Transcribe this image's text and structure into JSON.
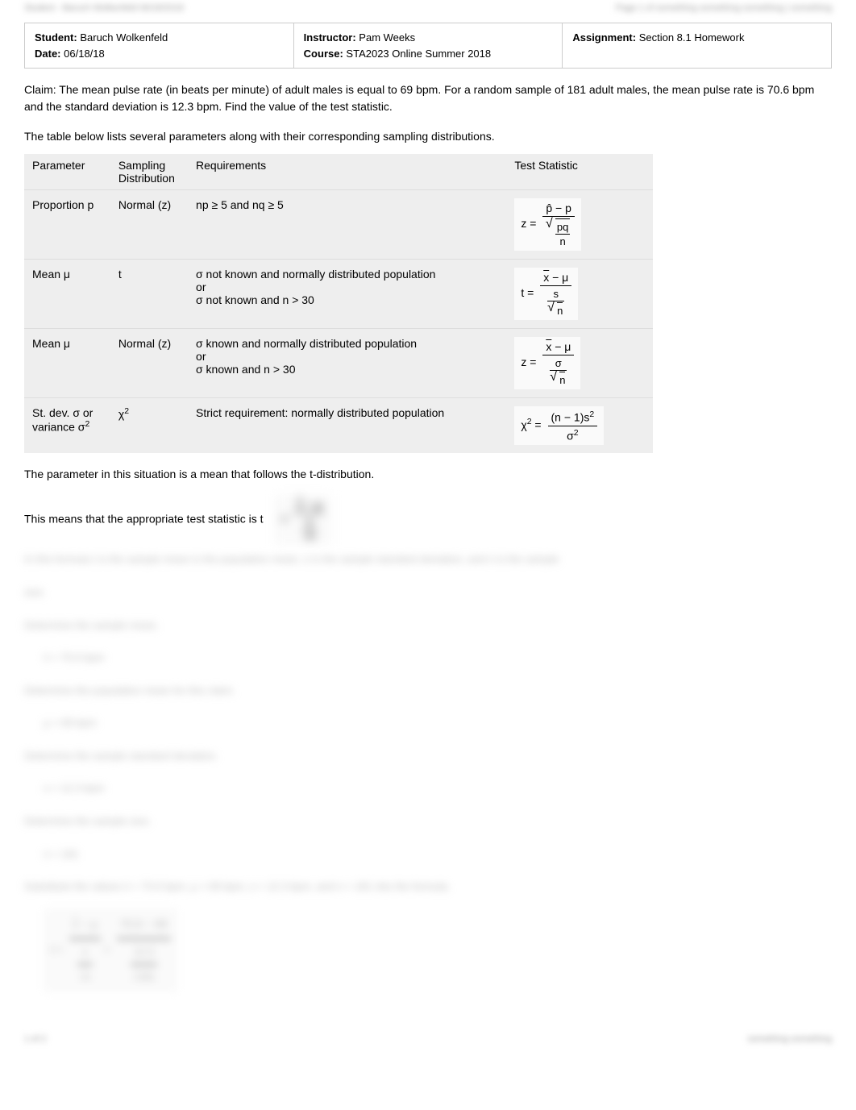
{
  "header_blur_left": "Student - Baruch Wolkenfeld 06/18/2018",
  "header_blur_right": "Page 1 of something something something | something",
  "info": {
    "student_label": "Student:",
    "student_value": "Baruch Wolkenfeld",
    "date_label": "Date:",
    "date_value": "06/18/18",
    "instructor_label": "Instructor:",
    "instructor_value": "Pam Weeks",
    "course_label": "Course:",
    "course_value": "STA2023 Online Summer 2018",
    "assignment_label": "Assignment:",
    "assignment_value": "Section 8.1 Homework"
  },
  "claim": "Claim: The mean pulse rate (in beats per minute) of adult males is equal to 69 bpm. For a random sample of 181 adult males, the mean pulse rate is 70.6 bpm and the standard deviation is 12.3 bpm. Find the value of the test statistic.",
  "table_intro": "The table below lists several parameters along with their corresponding sampling distributions.",
  "table": {
    "headers": {
      "parameter": "Parameter",
      "distribution": "Sampling Distribution",
      "requirements": "Requirements",
      "statistic": "Test Statistic"
    },
    "rows": [
      {
        "parameter": "Proportion p",
        "distribution": "Normal (z)",
        "requirements": "np ≥ 5 and nq ≥ 5",
        "stat_lhs": "z =",
        "stat_num": "p̂ − p",
        "stat_den_num": "pq",
        "stat_den_den": "n",
        "formula_type": "z_prop"
      },
      {
        "parameter": "Mean μ",
        "distribution": "t",
        "requirements": "σ not known and normally distributed population\nor\nσ not known and n > 30",
        "stat_lhs": "t =",
        "stat_num": "x̄ − μ",
        "stat_den_num": "s",
        "stat_den_den": "n",
        "formula_type": "t_mean"
      },
      {
        "parameter": "Mean μ",
        "distribution": "Normal (z)",
        "requirements": "σ known and normally distributed population\nor\nσ known and n > 30",
        "stat_lhs": "z =",
        "stat_num": "x̄ − μ",
        "stat_den_num": "σ",
        "stat_den_den": "n",
        "formula_type": "z_mean"
      },
      {
        "parameter": "St. dev. σ or variance σ²",
        "distribution": "χ²",
        "requirements": "Strict requirement: normally distributed population",
        "stat_lhs": "χ² =",
        "stat_num": "(n − 1)s²",
        "stat_den": "σ²",
        "formula_type": "chi"
      }
    ]
  },
  "para1": "The parameter in this situation is a mean that follows the t-distribution.",
  "para2": "This means that the appropriate test statistic is t",
  "blurred": {
    "line1": "In this formula     t is the sample mean     is the population mean, s is the sample standard deviation, and n is the sample",
    "line2": "size.",
    "line3": "Determine the sample mean.",
    "line4": "x̄ = 70.6 bpm",
    "line5": "Determine the population mean for this claim.",
    "line6": "μ = 69 bpm",
    "line7": "Determine the sample standard deviation.",
    "line8": "s = 12.3 bpm",
    "line9": "Determine the sample size.",
    "line10": "n = 181",
    "line11": "Substitute the values   x̄ = 70.6 bpm, μ = 69 bpm, s = 12.3 bpm, and n = 181 into the formula."
  },
  "footer_left": "1 of 2",
  "footer_right": "something something"
}
